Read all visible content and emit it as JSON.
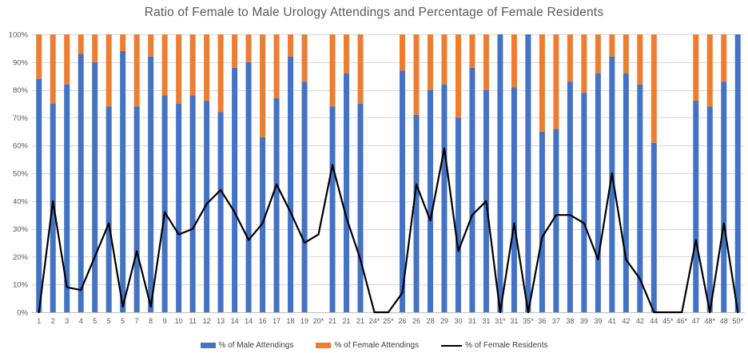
{
  "title": "Ratio of Female to Male Urology Attendings and Percentage of Female Residents",
  "legend": {
    "male_label": "% of Male Attendings",
    "female_label": "% of Female Attendings",
    "residents_label": "% of Female Residents"
  },
  "chart_data": {
    "type": "combo-stacked-bar-line",
    "title": "Ratio of Female to Male Urology Attendings and Percentage of Female Residents",
    "categories": [
      "1",
      "2",
      "3",
      "4",
      "5",
      "5",
      "5",
      "7",
      "8",
      "9",
      "10",
      "11",
      "12",
      "13",
      "14",
      "14",
      "16",
      "17",
      "18",
      "19",
      "20*",
      "21",
      "21",
      "21",
      "24*",
      "25*",
      "26",
      "26",
      "28",
      "29",
      "30",
      "31",
      "31",
      "31*",
      "31",
      "35*",
      "36",
      "37",
      "38",
      "39",
      "39",
      "41",
      "42",
      "42",
      "44",
      "45*",
      "46*",
      "47",
      "48*",
      "48",
      "50*"
    ],
    "series": [
      {
        "name": "% of Male Attendings",
        "type": "bar",
        "color": "#4472C4",
        "values": [
          84,
          75,
          82,
          93,
          90,
          74,
          94,
          74,
          92,
          78,
          75,
          78,
          76,
          72,
          88,
          90,
          63,
          77,
          92,
          83,
          null,
          74,
          86,
          75,
          null,
          null,
          87,
          71,
          80,
          82,
          70,
          88,
          80,
          100,
          81,
          100,
          65,
          66,
          83,
          79,
          86,
          92,
          86,
          82,
          61,
          null,
          null,
          76,
          74,
          83,
          100
        ]
      },
      {
        "name": "% of Female Attendings",
        "type": "bar",
        "color": "#ED7D31",
        "values": [
          16,
          25,
          18,
          7,
          10,
          26,
          6,
          26,
          8,
          22,
          25,
          22,
          24,
          28,
          12,
          10,
          37,
          23,
          8,
          17,
          null,
          26,
          14,
          25,
          null,
          null,
          13,
          29,
          20,
          18,
          30,
          12,
          20,
          0,
          19,
          0,
          35,
          34,
          17,
          21,
          14,
          8,
          14,
          18,
          39,
          null,
          null,
          24,
          26,
          17,
          0
        ]
      },
      {
        "name": "% of Female Residents",
        "type": "line",
        "color": "#000000",
        "values": [
          0,
          40,
          9,
          8,
          20,
          32,
          2,
          22,
          2,
          36,
          28,
          30,
          39,
          44,
          36,
          26,
          32,
          46,
          36,
          25,
          28,
          53,
          34,
          19,
          0,
          0,
          7,
          46,
          33,
          59,
          22,
          35,
          40,
          0,
          32,
          0,
          27,
          35,
          35,
          32,
          19,
          50,
          19,
          12,
          0,
          0,
          0,
          26,
          0,
          32,
          0
        ]
      }
    ],
    "ylim": [
      0,
      100
    ],
    "yticks": [
      "0%",
      "10%",
      "20%",
      "30%",
      "40%",
      "50%",
      "60%",
      "70%",
      "80%",
      "90%",
      "100%"
    ],
    "grid": "horizontal",
    "gridline_color": "#D9D9D9",
    "axis_line_color": "#BFBFBF",
    "tick_label_color": "#595959",
    "legend_position": "bottom"
  }
}
